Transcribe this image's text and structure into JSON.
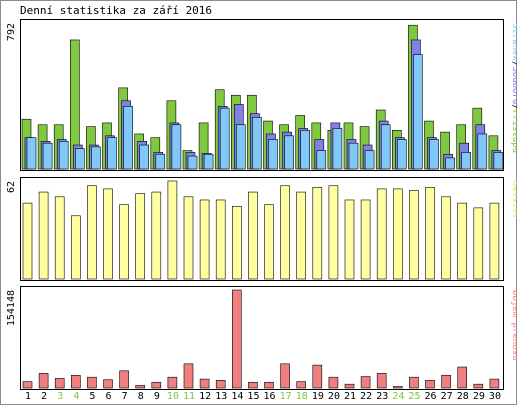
{
  "title": "Denní statistika za září 2016",
  "colors": {
    "hits": "#80C840",
    "files": "#8080E8",
    "pages": "#80C8F8",
    "visits": "#FFFFA0",
    "kbytes": "#F08080",
    "weekday_label": "#000000",
    "weekend_label": "#88C040",
    "border": "#000000"
  },
  "chart_data": [
    {
      "type": "bar",
      "id": "requests",
      "ymax_label": "792",
      "ylim": [
        0,
        792
      ],
      "right_label": {
        "parts": [
          {
            "text": "Stránek",
            "color": "#80C8F8"
          },
          {
            "text": "/",
            "color": "#000000"
          },
          {
            "text": "Souborů",
            "color": "#8080E8"
          },
          {
            "text": "/",
            "color": "#000000"
          },
          {
            "text": "Přístupů",
            "color": "#80C840"
          }
        ]
      },
      "categories": [
        "1",
        "2",
        "3",
        "4",
        "5",
        "6",
        "7",
        "8",
        "9",
        "10",
        "11",
        "12",
        "13",
        "14",
        "15",
        "16",
        "17",
        "18",
        "19",
        "20",
        "21",
        "22",
        "23",
        "24",
        "25",
        "26",
        "27",
        "28",
        "29",
        "30"
      ],
      "series": [
        {
          "name": "Přístupů",
          "color": "#80C840",
          "values": [
            270,
            240,
            240,
            700,
            230,
            250,
            440,
            190,
            170,
            370,
            100,
            250,
            430,
            400,
            400,
            260,
            240,
            290,
            250,
            210,
            250,
            230,
            320,
            210,
            780,
            260,
            200,
            240,
            330,
            180
          ]
        },
        {
          "name": "Souborů",
          "color": "#8080E8",
          "values": [
            170,
            150,
            160,
            130,
            130,
            180,
            370,
            150,
            90,
            250,
            90,
            85,
            340,
            350,
            300,
            190,
            200,
            220,
            160,
            250,
            160,
            130,
            260,
            170,
            700,
            170,
            80,
            140,
            240,
            100
          ]
        },
        {
          "name": "Stránek",
          "color": "#80C8F8",
          "values": [
            170,
            140,
            150,
            110,
            120,
            170,
            340,
            130,
            80,
            240,
            70,
            80,
            330,
            240,
            280,
            160,
            180,
            210,
            100,
            220,
            140,
            100,
            240,
            160,
            620,
            160,
            60,
            90,
            190,
            90
          ]
        }
      ]
    },
    {
      "type": "bar",
      "id": "visits",
      "ymax_label": "62",
      "ylim": [
        0,
        62
      ],
      "right_label": {
        "parts": [
          {
            "text": "Návštěv",
            "color": "#E8E880"
          }
        ]
      },
      "categories": [
        "1",
        "2",
        "3",
        "4",
        "5",
        "6",
        "7",
        "8",
        "9",
        "10",
        "11",
        "12",
        "13",
        "14",
        "15",
        "16",
        "17",
        "18",
        "19",
        "20",
        "21",
        "22",
        "23",
        "24",
        "25",
        "26",
        "27",
        "28",
        "29",
        "30"
      ],
      "series": [
        {
          "name": "Návštěv",
          "color": "#FFFFA0",
          "values": [
            48,
            55,
            52,
            40,
            59,
            57,
            47,
            54,
            55,
            62,
            52,
            50,
            50,
            46,
            55,
            47,
            59,
            55,
            58,
            59,
            50,
            50,
            57,
            57,
            56,
            58,
            52,
            48,
            45,
            48
          ]
        }
      ]
    },
    {
      "type": "bar",
      "id": "kbytes",
      "ymax_label": "154148",
      "ylim": [
        0,
        154148
      ],
      "right_label": {
        "parts": [
          {
            "text": "Objem přenosu",
            "color": "#F08080"
          }
        ]
      },
      "categories": [
        "1",
        "2",
        "3",
        "4",
        "5",
        "6",
        "7",
        "8",
        "9",
        "10",
        "11",
        "12",
        "13",
        "14",
        "15",
        "16",
        "17",
        "18",
        "19",
        "20",
        "21",
        "22",
        "23",
        "24",
        "25",
        "26",
        "27",
        "28",
        "29",
        "30"
      ],
      "series": [
        {
          "name": "Objem přenosu",
          "color": "#F08080",
          "values": [
            10000,
            23000,
            15000,
            20000,
            17000,
            13000,
            27000,
            4000,
            9000,
            17000,
            38000,
            14000,
            12000,
            154148,
            9000,
            9000,
            38000,
            10000,
            36000,
            17000,
            6000,
            18000,
            23000,
            2000,
            17000,
            12000,
            20000,
            33000,
            6000,
            14000
          ]
        }
      ]
    }
  ],
  "weekend_days": [
    "3",
    "4",
    "10",
    "11",
    "17",
    "18",
    "24",
    "25"
  ]
}
